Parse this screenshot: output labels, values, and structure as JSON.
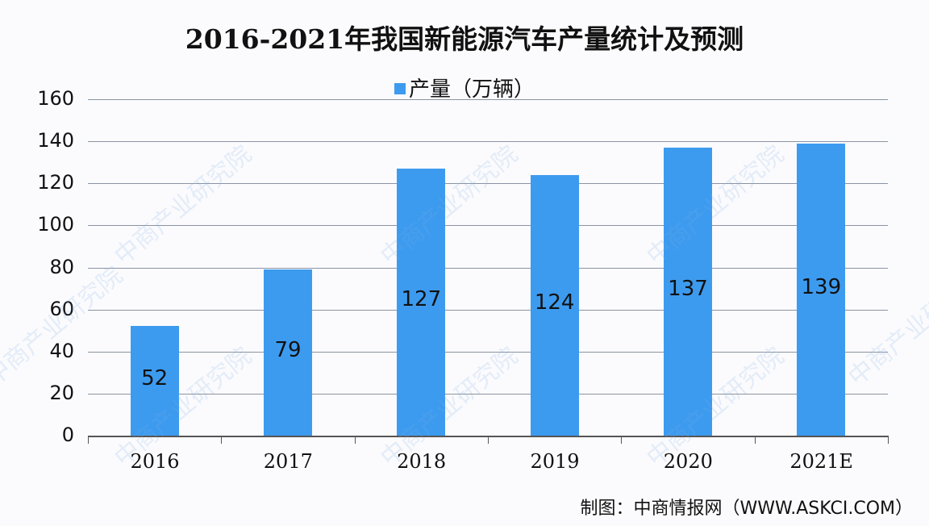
{
  "chart_data": {
    "type": "bar",
    "title": "2016-2021年我国新能源汽车产量统计及预测",
    "categories": [
      "2016",
      "2017",
      "2018",
      "2019",
      "2020",
      "2021E"
    ],
    "series": [
      {
        "name": "产量（万辆）",
        "values": [
          52,
          79,
          127,
          124,
          137,
          139
        ],
        "color": "#3d9bef"
      }
    ],
    "xlabel": "",
    "ylabel": "",
    "ylim": [
      0,
      160
    ],
    "yticks": [
      "0",
      "20",
      "40",
      "60",
      "80",
      "100",
      "120",
      "140",
      "160"
    ],
    "grid": true,
    "legend_position": "top",
    "data_labels": [
      "52",
      "79",
      "127",
      "124",
      "137",
      "139"
    ]
  },
  "legend": {
    "label": "产量（万辆）"
  },
  "footer": {
    "source": "制图：中商情报网（WWW.ASKCI.COM）"
  },
  "watermark": {
    "text": "中商产业研究院"
  }
}
